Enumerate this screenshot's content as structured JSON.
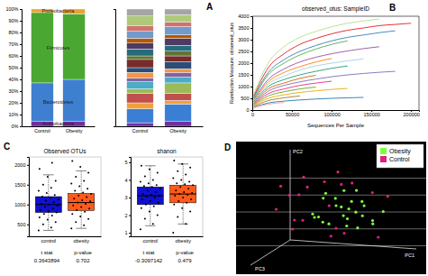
{
  "panel_labels": [
    "A",
    "B",
    "C",
    "D"
  ],
  "chart_data": [
    {
      "type": "bar",
      "stacked": true,
      "categories": [
        "Control",
        "Obesity"
      ],
      "ylim": [
        0,
        100
      ],
      "yticks": [
        {
          "value": 0,
          "label": "0%"
        },
        {
          "value": 10,
          "label": "10%"
        },
        {
          "value": 20,
          "label": "20%"
        },
        {
          "value": 30,
          "label": "30%"
        },
        {
          "value": 40,
          "label": "40%"
        },
        {
          "value": 50,
          "label": "50%"
        },
        {
          "value": 60,
          "label": "60%"
        },
        {
          "value": 70,
          "label": "70%"
        },
        {
          "value": 80,
          "label": "80%"
        },
        {
          "value": 90,
          "label": "90%"
        },
        {
          "value": 100,
          "label": "100%"
        }
      ],
      "series": [
        {
          "name": "Actinobacteria",
          "color": "#7030a0",
          "values": [
            4,
            4
          ]
        },
        {
          "name": "Bacteroidetes",
          "color": "#3f7fcf",
          "values": [
            33,
            36
          ]
        },
        {
          "name": "Firmicutes",
          "color": "#4aa832",
          "values": [
            60,
            56
          ]
        },
        {
          "name": "Proteobacteria",
          "color": "#f0a030",
          "values": [
            3,
            4
          ]
        }
      ]
    },
    {
      "type": "bar",
      "stacked": true,
      "tick_labels": "x",
      "categories": [
        "Control",
        "Obesity"
      ],
      "ylim": [
        0,
        100
      ],
      "series": [
        {
          "color": "#7030a0",
          "values": [
            3,
            4
          ]
        },
        {
          "color": "#3b7fd4",
          "values": [
            12,
            15
          ]
        },
        {
          "color": "#f2a03a",
          "values": [
            5,
            3
          ]
        },
        {
          "color": "#c0504d",
          "values": [
            8,
            6
          ]
        },
        {
          "color": "#9bbb59",
          "values": [
            4,
            9
          ]
        },
        {
          "color": "#4bacc6",
          "values": [
            6,
            5
          ]
        },
        {
          "color": "#8064a2",
          "values": [
            3,
            4
          ]
        },
        {
          "color": "#f79646",
          "values": [
            5,
            3
          ]
        },
        {
          "color": "#2c4d75",
          "values": [
            4,
            6
          ]
        },
        {
          "color": "#772c2a",
          "values": [
            7,
            5
          ]
        },
        {
          "color": "#5f7530",
          "values": [
            3,
            4
          ]
        },
        {
          "color": "#276a7c",
          "values": [
            6,
            5
          ]
        },
        {
          "color": "#4d3b62",
          "values": [
            5,
            6
          ]
        },
        {
          "color": "#b65708",
          "values": [
            4,
            3
          ]
        },
        {
          "color": "#729aca",
          "values": [
            6,
            7
          ]
        },
        {
          "color": "#cd7371",
          "values": [
            5,
            4
          ]
        },
        {
          "color": "#afc97a",
          "values": [
            8,
            6
          ]
        },
        {
          "color": "#a5a5a5",
          "values": [
            6,
            5
          ]
        }
      ]
    },
    {
      "type": "line",
      "title": "observed_otus: SampleID",
      "x_label": "Sequences Per Sample",
      "y_label": "Rarefaction Measure: observed_otus",
      "x": [
        2000,
        20000,
        40000,
        60000,
        80000,
        100000,
        120000,
        140000,
        160000,
        180000,
        200000
      ],
      "xlim": [
        0,
        210000
      ],
      "xticks": [
        0,
        50000,
        100000,
        150000,
        200000
      ],
      "ylim": [
        0,
        4000
      ],
      "yticks": [
        0,
        500,
        1000,
        1500,
        2000,
        2500,
        3000,
        3500,
        4000
      ],
      "series": [
        {
          "color": "#e41a1c",
          "values": [
            600,
            1800,
            2400,
            2800,
            3050,
            3250,
            3400,
            3500,
            3600,
            3650,
            3700
          ]
        },
        {
          "color": "#377eb8",
          "values": [
            550,
            1600,
            2150,
            2500,
            2750,
            2950,
            3100,
            3200,
            3300,
            3380,
            null
          ]
        },
        {
          "color": "#4daf4a",
          "values": [
            500,
            1500,
            2000,
            2350,
            2600,
            2800,
            2950,
            null,
            null,
            null,
            null
          ]
        },
        {
          "color": "#984ea3",
          "values": [
            450,
            1300,
            1750,
            2050,
            2250,
            2400,
            2520,
            2620,
            2700,
            null,
            null
          ]
        },
        {
          "color": "#ff7f00",
          "values": [
            400,
            1200,
            1600,
            1850,
            2050,
            2200,
            null,
            null,
            null,
            null,
            null
          ]
        },
        {
          "color": "#a6cee3",
          "values": [
            380,
            1100,
            1450,
            1700,
            1880,
            2000,
            2100,
            2180,
            null,
            null,
            null
          ]
        },
        {
          "color": "#1b9e77",
          "values": [
            350,
            1000,
            1300,
            1500,
            1650,
            1780,
            1880,
            null,
            null,
            null,
            null
          ]
        },
        {
          "color": "#d95f02",
          "values": [
            300,
            900,
            1150,
            1350,
            1480,
            null,
            null,
            null,
            null,
            null,
            null
          ]
        },
        {
          "color": "#7570b3",
          "values": [
            280,
            800,
            1050,
            1200,
            1320,
            1420,
            1500,
            1560,
            1610,
            1650,
            null
          ]
        },
        {
          "color": "#e7298a",
          "values": [
            250,
            700,
            900,
            1050,
            1150,
            1230,
            null,
            null,
            null,
            null,
            null
          ]
        },
        {
          "color": "#66a61e",
          "values": [
            220,
            600,
            780,
            900,
            980,
            null,
            null,
            null,
            null,
            null,
            null
          ]
        },
        {
          "color": "#e6ab02",
          "values": [
            200,
            500,
            650,
            750,
            820,
            880,
            920,
            null,
            null,
            null,
            null
          ]
        },
        {
          "color": "#a6761d",
          "values": [
            160,
            400,
            520,
            600,
            null,
            null,
            null,
            null,
            null,
            null,
            null
          ]
        },
        {
          "color": "#1f78b4",
          "values": [
            120,
            300,
            380,
            430,
            470,
            500,
            520,
            540,
            null,
            null,
            null
          ]
        },
        {
          "color": "#b2df8a",
          "values": [
            700,
            2000,
            2700,
            3100,
            3350,
            3550,
            3700,
            3800,
            3880,
            null,
            null
          ]
        },
        {
          "color": "#fb9a99",
          "values": [
            100,
            250,
            320,
            null,
            null,
            null,
            null,
            null,
            null,
            null,
            null
          ]
        }
      ]
    },
    {
      "type": "box",
      "title": "Observed OTUs",
      "categories": [
        "control",
        "obesity"
      ],
      "colors": [
        "#1010d0",
        "#ff5a1a"
      ],
      "ylim": [
        200,
        2200
      ],
      "yticks": [
        500,
        1000,
        1500,
        2000
      ],
      "boxes": [
        {
          "q1": 800,
          "median": 1000,
          "q3": 1200,
          "whisker_low": 350,
          "whisker_high": 1750,
          "points": [
            350,
            420,
            500,
            560,
            620,
            680,
            720,
            760,
            800,
            830,
            860,
            900,
            940,
            970,
            1000,
            1020,
            1060,
            1100,
            1130,
            1170,
            1200,
            1240,
            1290,
            1350,
            1420,
            1500,
            1600,
            1700,
            1900,
            2050
          ]
        },
        {
          "q1": 850,
          "median": 1050,
          "q3": 1280,
          "whisker_low": 400,
          "whisker_high": 1850,
          "points": [
            400,
            480,
            560,
            640,
            700,
            760,
            820,
            860,
            900,
            940,
            980,
            1020,
            1050,
            1080,
            1110,
            1150,
            1190,
            1230,
            1270,
            1300,
            1350,
            1400,
            1460,
            1530,
            1600,
            1700,
            1800,
            1950,
            2100
          ]
        }
      ],
      "stats": [
        {
          "label": "t stat",
          "value": 0.3643894
        },
        {
          "label": "p-value",
          "value": 0.702
        }
      ]
    },
    {
      "type": "box",
      "title": "shanon",
      "categories": [
        "control",
        "obesity"
      ],
      "colors": [
        "#1010d0",
        "#ff5a1a"
      ],
      "ylim": [
        0.8,
        5.3
      ],
      "yticks": [
        1,
        2,
        3,
        4,
        5
      ],
      "boxes": [
        {
          "q1": 2.6,
          "median": 3.1,
          "q3": 3.6,
          "whisker_low": 1.4,
          "whisker_high": 4.8,
          "points": [
            1.2,
            1.5,
            1.8,
            2.0,
            2.2,
            2.4,
            2.5,
            2.6,
            2.7,
            2.8,
            2.9,
            3.0,
            3.05,
            3.1,
            3.15,
            3.2,
            3.3,
            3.4,
            3.5,
            3.6,
            3.65,
            3.7,
            3.8,
            3.9,
            4.0,
            4.2,
            4.4,
            4.6,
            4.8
          ]
        },
        {
          "q1": 2.7,
          "median": 3.2,
          "q3": 3.7,
          "whisker_low": 1.5,
          "whisker_high": 4.9,
          "points": [
            1.0,
            1.5,
            1.9,
            2.2,
            2.4,
            2.6,
            2.7,
            2.8,
            2.9,
            3.0,
            3.1,
            3.15,
            3.2,
            3.25,
            3.3,
            3.4,
            3.5,
            3.6,
            3.7,
            3.75,
            3.8,
            3.9,
            4.0,
            4.1,
            4.3,
            4.5,
            4.7,
            4.9,
            5.1
          ]
        }
      ],
      "stats": [
        {
          "label": "t stat",
          "value": -0.3097142
        },
        {
          "label": "p-value",
          "value": 0.479
        }
      ]
    },
    {
      "type": "scatter3d",
      "x_label": "PC1",
      "y_label": "PC2",
      "z_label": "PC3",
      "xlim": [
        -0.4,
        0.4
      ],
      "ylim": [
        -0.4,
        0.4
      ],
      "zlim": [
        -0.4,
        0.4
      ],
      "yticks": [
        -0.3,
        -0.15,
        0,
        0.15,
        0.3
      ],
      "tick_labels": false,
      "grid": true,
      "legend": "top-right",
      "series": [
        {
          "name": "Obesity",
          "color": "#7fff3f",
          "x": [
            0.05,
            0.12,
            -0.08,
            0.2,
            0.15,
            -0.02,
            0.08,
            0.25,
            0.3,
            -0.1,
            0.02,
            0.18,
            0.1,
            -0.05,
            0.22,
            0.05,
            0.14,
            -0.12,
            0.28,
            0.0,
            0.09,
            0.16,
            -0.03,
            0.06,
            0.12
          ],
          "y": [
            0.05,
            -0.02,
            0.1,
            0.0,
            0.08,
            -0.05,
            0.12,
            -0.08,
            0.02,
            0.0,
            0.15,
            0.05,
            -0.1,
            0.06,
            0.1,
            -0.03,
            0.2,
            -0.06,
            -0.02,
            0.04,
            0.08,
            -0.12,
            0.18,
            0.0,
            0.03
          ],
          "z": [
            0.0,
            0.1,
            -0.05,
            0.05,
            -0.1,
            0.15,
            0.2,
            0.0,
            -0.05,
            0.1,
            -0.15,
            0.12,
            0.05,
            -0.2,
            0.08,
            0.25,
            -0.02,
            0.0,
            0.1,
            0.3,
            -0.08,
            0.02,
            0.06,
            -0.12,
            0.18
          ]
        },
        {
          "name": "Control",
          "color": "#e0207f",
          "x": [
            -0.15,
            -0.25,
            0.05,
            -0.3,
            0.1,
            -0.05,
            -0.2,
            0.2,
            -0.1,
            0.0,
            -0.35,
            0.15,
            -0.18,
            0.25,
            -0.28,
            0.08,
            -0.12,
            0.3,
            -0.22,
            0.02
          ],
          "y": [
            0.22,
            0.1,
            0.25,
            0.05,
            -0.15,
            0.28,
            -0.05,
            0.15,
            0.0,
            -0.2,
            0.18,
            0.3,
            -0.1,
            0.08,
            0.12,
            -0.08,
            0.2,
            -0.18,
            0.26,
            0.1
          ],
          "z": [
            0.05,
            -0.1,
            0.0,
            0.2,
            0.1,
            -0.25,
            0.15,
            -0.15,
            0.3,
            0.05,
            -0.05,
            0.1,
            0.25,
            -0.3,
            0.0,
            0.2,
            -0.2,
            0.05,
            -0.1,
            0.15
          ]
        }
      ]
    }
  ]
}
